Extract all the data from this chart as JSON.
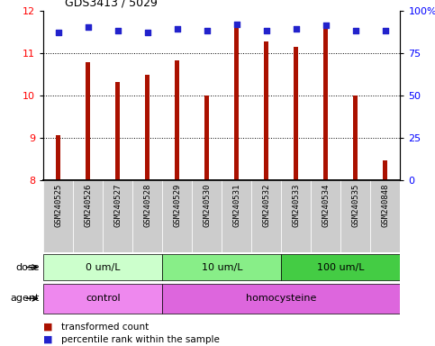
{
  "title": "GDS3413 / 5029",
  "samples": [
    "GSM240525",
    "GSM240526",
    "GSM240527",
    "GSM240528",
    "GSM240529",
    "GSM240530",
    "GSM240531",
    "GSM240532",
    "GSM240533",
    "GSM240534",
    "GSM240535",
    "GSM240848"
  ],
  "transformed_counts": [
    9.05,
    10.78,
    10.3,
    10.48,
    10.82,
    10.0,
    11.6,
    11.27,
    11.13,
    11.58,
    10.0,
    8.47
  ],
  "percentile_ranks": [
    87,
    90,
    88,
    87,
    89,
    88,
    92,
    88,
    89,
    91,
    88,
    88
  ],
  "bar_color": "#aa1100",
  "dot_color": "#2222cc",
  "ylim_left": [
    8,
    12
  ],
  "ylim_right": [
    0,
    100
  ],
  "yticks_left": [
    8,
    9,
    10,
    11,
    12
  ],
  "yticks_right": [
    0,
    25,
    50,
    75,
    100
  ],
  "yticklabels_right": [
    "0",
    "25",
    "50",
    "75",
    "100%"
  ],
  "dose_groups": [
    {
      "label": "0 um/L",
      "start": 0,
      "end": 4,
      "color": "#ccffcc"
    },
    {
      "label": "10 um/L",
      "start": 4,
      "end": 8,
      "color": "#88ee88"
    },
    {
      "label": "100 um/L",
      "start": 8,
      "end": 12,
      "color": "#44cc44"
    }
  ],
  "agent_groups": [
    {
      "label": "control",
      "start": 0,
      "end": 4,
      "color": "#ee88ee"
    },
    {
      "label": "homocysteine",
      "start": 4,
      "end": 12,
      "color": "#dd66dd"
    }
  ],
  "legend_bar_label": "transformed count",
  "legend_dot_label": "percentile rank within the sample",
  "xlabel_dose": "dose",
  "xlabel_agent": "agent",
  "label_area_color": "#cccccc",
  "bar_width": 0.15
}
